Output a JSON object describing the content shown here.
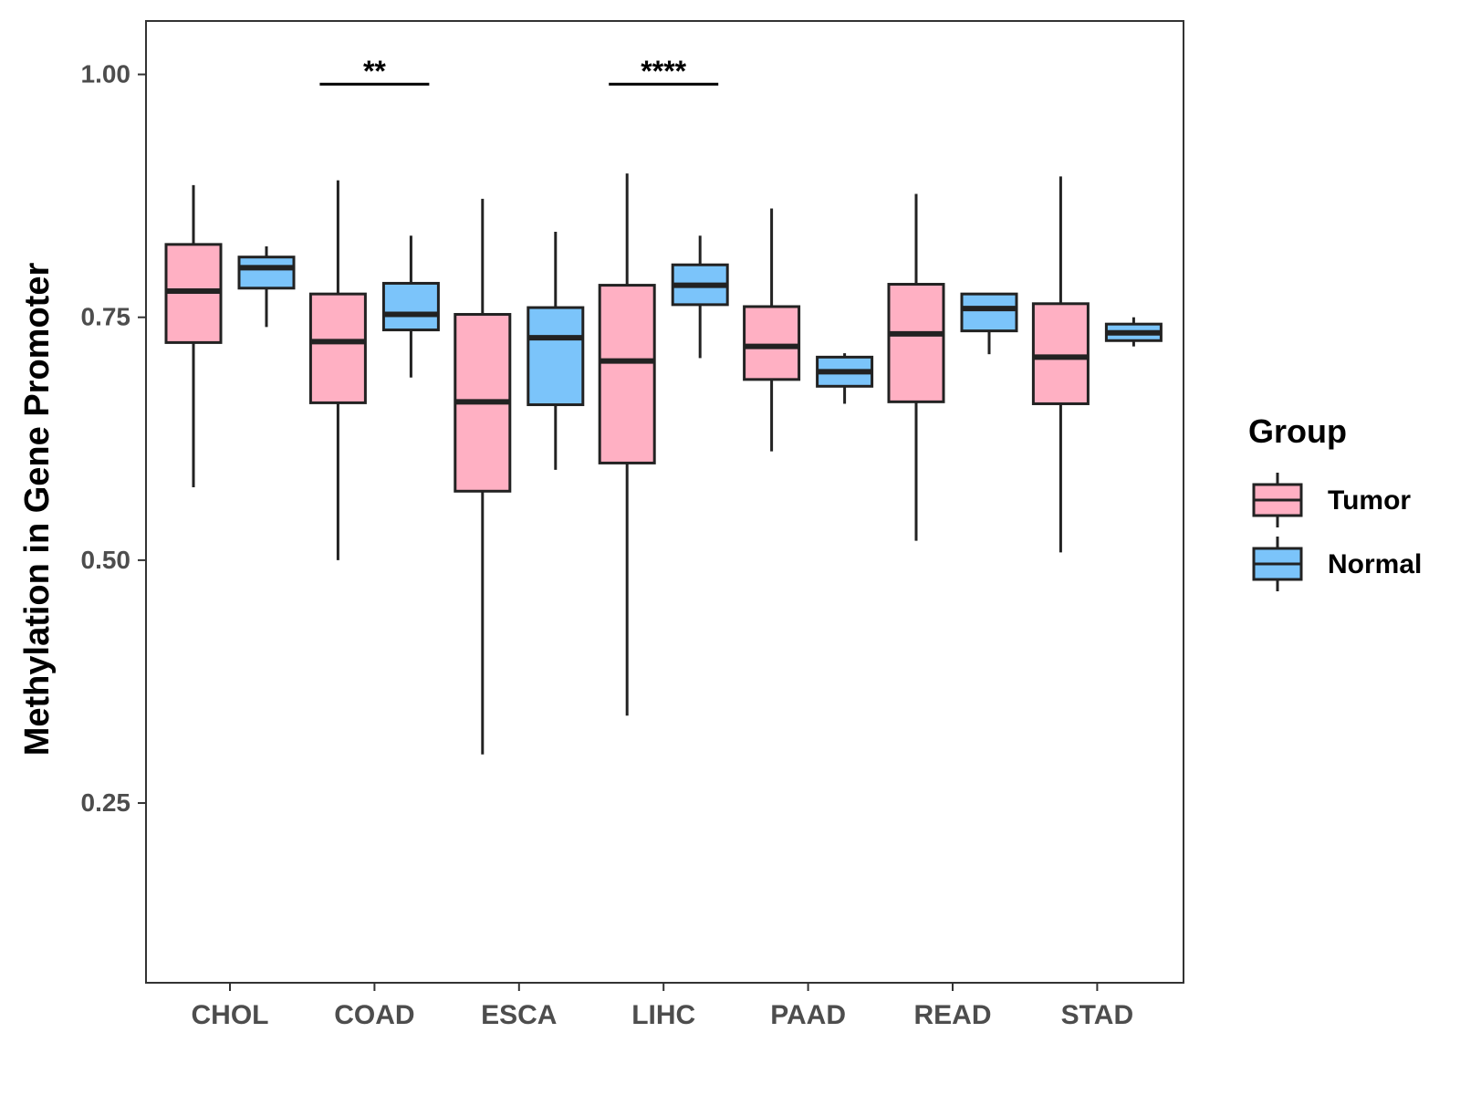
{
  "chart_data": {
    "type": "box",
    "title": "",
    "xlabel": "",
    "ylabel": "Methylation in Gene Promoter",
    "ylim": [
      0.065,
      1.055
    ],
    "yticks": [
      "0.25",
      "0.50",
      "0.75",
      "1.00"
    ],
    "grid": false,
    "categories": [
      "CHOL",
      "COAD",
      "ESCA",
      "LIHC",
      "PAAD",
      "READ",
      "STAD"
    ],
    "legend": {
      "title": "Group",
      "position": "right",
      "entries": [
        "Tumor",
        "Normal"
      ]
    },
    "colors": {
      "Tumor": "#FFB0C3",
      "Normal": "#7BC4FA",
      "outline": "#222222"
    },
    "series": [
      {
        "name": "Tumor",
        "boxes": [
          {
            "min": 0.575,
            "q1": 0.724,
            "median": 0.777,
            "q3": 0.825,
            "max": 0.886
          },
          {
            "min": 0.5,
            "q1": 0.662,
            "median": 0.725,
            "q3": 0.774,
            "max": 0.891
          },
          {
            "min": 0.3,
            "q1": 0.571,
            "median": 0.663,
            "q3": 0.753,
            "max": 0.872
          },
          {
            "min": 0.34,
            "q1": 0.6,
            "median": 0.705,
            "q3": 0.783,
            "max": 0.898
          },
          {
            "min": 0.612,
            "q1": 0.686,
            "median": 0.72,
            "q3": 0.761,
            "max": 0.862
          },
          {
            "min": 0.52,
            "q1": 0.663,
            "median": 0.733,
            "q3": 0.784,
            "max": 0.877
          },
          {
            "min": 0.508,
            "q1": 0.661,
            "median": 0.709,
            "q3": 0.764,
            "max": 0.895
          }
        ]
      },
      {
        "name": "Normal",
        "boxes": [
          {
            "min": 0.74,
            "q1": 0.78,
            "median": 0.801,
            "q3": 0.812,
            "max": 0.823
          },
          {
            "min": 0.688,
            "q1": 0.737,
            "median": 0.753,
            "q3": 0.785,
            "max": 0.834
          },
          {
            "min": 0.593,
            "q1": 0.66,
            "median": 0.729,
            "q3": 0.76,
            "max": 0.838
          },
          {
            "min": 0.708,
            "q1": 0.763,
            "median": 0.783,
            "q3": 0.804,
            "max": 0.834
          },
          {
            "min": 0.661,
            "q1": 0.679,
            "median": 0.694,
            "q3": 0.709,
            "max": 0.713
          },
          {
            "min": 0.712,
            "q1": 0.736,
            "median": 0.759,
            "q3": 0.774,
            "max": 0.775
          },
          {
            "min": 0.72,
            "q1": 0.726,
            "median": 0.734,
            "q3": 0.743,
            "max": 0.75
          }
        ]
      }
    ],
    "annotations": [
      {
        "category": "COAD",
        "label": "**",
        "y": 0.99
      },
      {
        "category": "LIHC",
        "label": "****",
        "y": 0.99
      }
    ]
  }
}
